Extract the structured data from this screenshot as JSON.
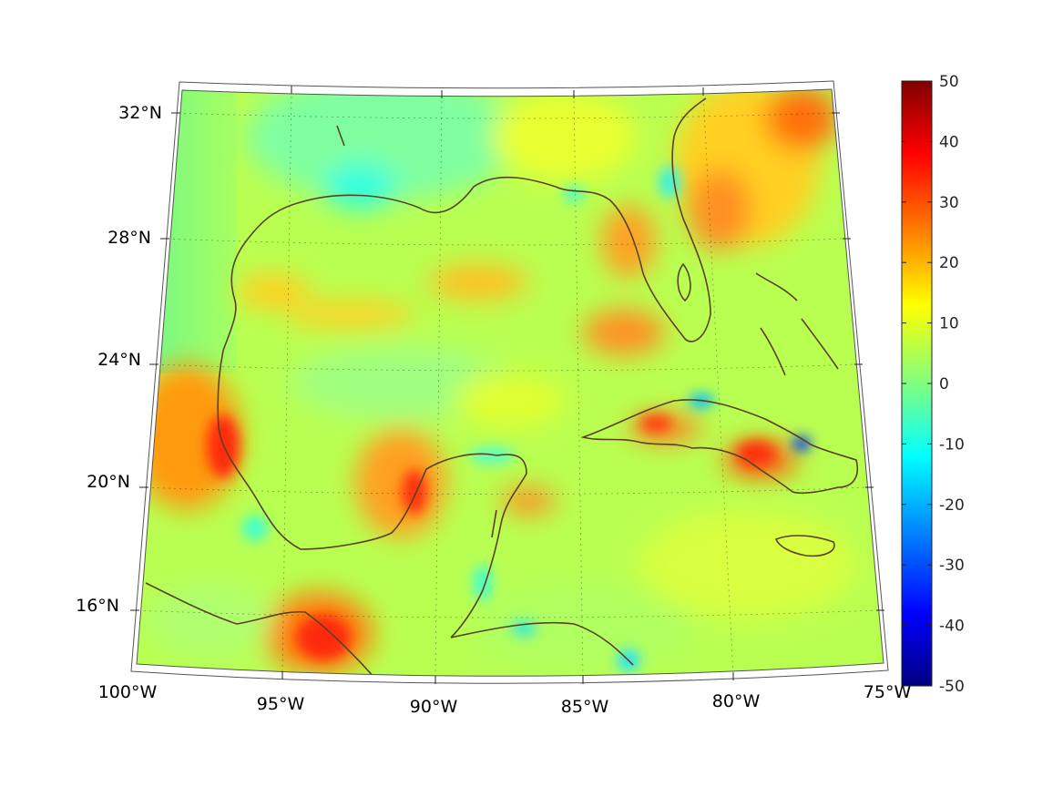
{
  "map": {
    "projection": "conic",
    "lat_range": [
      14,
      33
    ],
    "lon_range": [
      -100,
      -75
    ],
    "lat_labels": [
      {
        "value": 32,
        "text": "32°N"
      },
      {
        "value": 28,
        "text": "28°N"
      },
      {
        "value": 24,
        "text": "24°N"
      },
      {
        "value": 20,
        "text": "20°N"
      },
      {
        "value": 16,
        "text": "16°N"
      }
    ],
    "lon_labels": [
      {
        "value": -100,
        "text": "100°W"
      },
      {
        "value": -95,
        "text": "95°W"
      },
      {
        "value": -90,
        "text": "90°W"
      },
      {
        "value": -85,
        "text": "85°W"
      },
      {
        "value": -80,
        "text": "80°W"
      },
      {
        "value": -75,
        "text": "75°W"
      }
    ],
    "grid": true,
    "coastline_color": "#5a4220",
    "colormap": "jet",
    "colors": {
      "land_background": "#7fff7f",
      "ocean_background": "#c8ff40"
    }
  },
  "colorbar": {
    "min": -50,
    "max": 50,
    "ticks": [
      "50",
      "40",
      "30",
      "20",
      "10",
      "0",
      "-10",
      "-20",
      "-30",
      "-40",
      "-50"
    ],
    "colors": [
      "#800000",
      "#ff0000",
      "#ff8000",
      "#ffff00",
      "#80ff80",
      "#00ffff",
      "#0080ff",
      "#0000ff",
      "#000080"
    ]
  }
}
